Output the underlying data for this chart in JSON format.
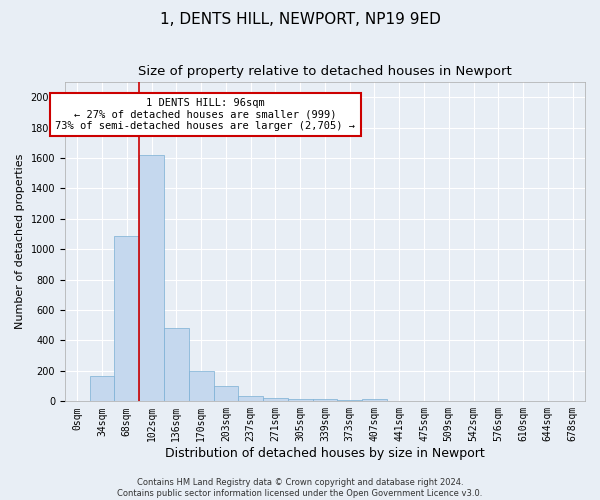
{
  "title": "1, DENTS HILL, NEWPORT, NP19 9ED",
  "subtitle": "Size of property relative to detached houses in Newport",
  "xlabel": "Distribution of detached houses by size in Newport",
  "ylabel": "Number of detached properties",
  "categories": [
    "0sqm",
    "34sqm",
    "68sqm",
    "102sqm",
    "136sqm",
    "170sqm",
    "203sqm",
    "237sqm",
    "271sqm",
    "305sqm",
    "339sqm",
    "373sqm",
    "407sqm",
    "441sqm",
    "475sqm",
    "509sqm",
    "542sqm",
    "576sqm",
    "610sqm",
    "644sqm",
    "678sqm"
  ],
  "values": [
    0,
    165,
    1090,
    1620,
    480,
    200,
    100,
    35,
    20,
    15,
    15,
    10,
    15,
    0,
    0,
    0,
    0,
    0,
    0,
    0,
    0
  ],
  "bar_color": "#c5d8ee",
  "bar_edge_color": "#7aafd4",
  "vline_color": "#cc0000",
  "vline_x_index": 3,
  "annotation_text": "1 DENTS HILL: 96sqm\n← 27% of detached houses are smaller (999)\n73% of semi-detached houses are larger (2,705) →",
  "annotation_box_color": "#ffffff",
  "annotation_box_edge_color": "#cc0000",
  "ylim": [
    0,
    2100
  ],
  "yticks": [
    0,
    200,
    400,
    600,
    800,
    1000,
    1200,
    1400,
    1600,
    1800,
    2000
  ],
  "bg_color": "#e8eef5",
  "grid_color": "#ffffff",
  "footer_line1": "Contains HM Land Registry data © Crown copyright and database right 2024.",
  "footer_line2": "Contains public sector information licensed under the Open Government Licence v3.0.",
  "title_fontsize": 11,
  "subtitle_fontsize": 9.5,
  "xlabel_fontsize": 9,
  "ylabel_fontsize": 8,
  "tick_fontsize": 7,
  "annotation_fontsize": 7.5,
  "footer_fontsize": 6
}
